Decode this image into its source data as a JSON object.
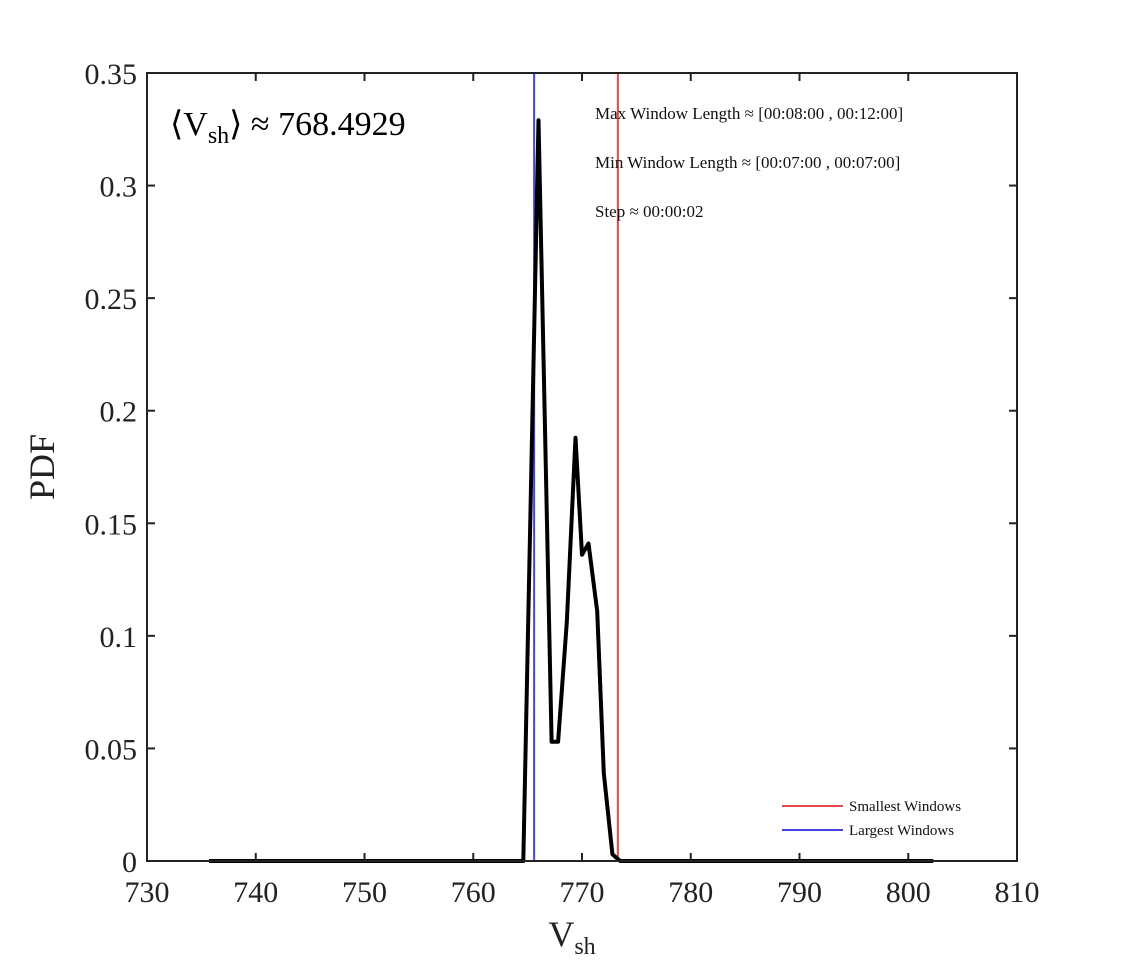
{
  "chart_data": {
    "type": "line",
    "xlabel": "V",
    "xlabel_sub": "sh",
    "ylabel": "PDF",
    "xlim": [
      730,
      810
    ],
    "ylim": [
      0,
      0.35
    ],
    "xticks": [
      "730",
      "740",
      "750",
      "760",
      "770",
      "780",
      "790",
      "800",
      "810"
    ],
    "yticks": [
      "0",
      "0.05",
      "0.1",
      "0.15",
      "0.2",
      "0.25",
      "0.3",
      "0.35"
    ],
    "grid": false,
    "legend_placement": "bottom-right",
    "mean_label": {
      "prefix": "⟨V",
      "sub": "sh",
      "suffix": "⟩ ≈ 768.4929"
    },
    "annotations": [
      "Max Window Length ≈ [00:08:00 , 00:12:00]",
      "Min Window Length ≈ [00:07:00 , 00:07:00]",
      "Step ≈ 00:00:02"
    ],
    "series": [
      {
        "color": "#000000",
        "x": [
          735.7,
          764.6,
          766.0,
          767.2,
          767.8,
          768.6,
          769.4,
          770.0,
          770.6,
          771.4,
          772.0,
          772.8,
          773.5,
          802.3
        ],
        "y": [
          0,
          0,
          0.329,
          0.053,
          0.053,
          0.106,
          0.188,
          0.136,
          0.141,
          0.111,
          0.039,
          0.003,
          0,
          0
        ]
      }
    ],
    "vlines": [
      {
        "name": "Smallest Windows",
        "x": 773.3,
        "color": "#e8474a"
      },
      {
        "name": "Largest Windows",
        "x": 765.6,
        "color": "#4343e0"
      }
    ]
  }
}
